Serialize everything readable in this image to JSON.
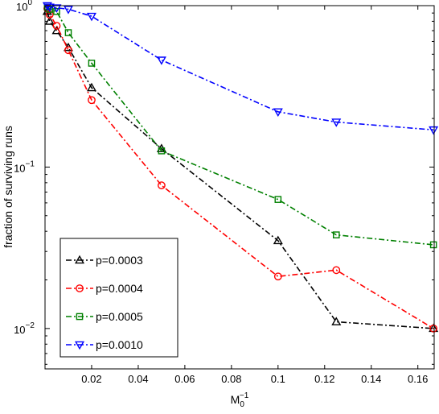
{
  "chart_data": {
    "type": "line",
    "title": "",
    "xlabel": {
      "base": "M",
      "sub": "0",
      "sup": "−1"
    },
    "ylabel": "fraction of surviving runs",
    "x": [
      0.001,
      0.002,
      0.005,
      0.01,
      0.02,
      0.05,
      0.1,
      0.125,
      0.1667
    ],
    "xlim": [
      0,
      0.167
    ],
    "ylim": [
      0.00562,
      1
    ],
    "yscale": "log",
    "x_ticks": [
      0.02,
      0.04,
      0.06,
      0.08,
      0.1,
      0.12,
      0.14,
      0.16
    ],
    "x_tick_labels": [
      "0.02",
      "0.04",
      "0.06",
      "0.08",
      "0.1",
      "0.12",
      "0.14",
      "0.16"
    ],
    "y_ticks": [
      {
        "value": 1,
        "base": "10",
        "exp": "0"
      },
      {
        "value": 0.1,
        "base": "10",
        "exp": "−1"
      },
      {
        "value": 0.01,
        "base": "10",
        "exp": "−2"
      }
    ],
    "grid": false,
    "legend_position": "bottom-left",
    "series": [
      {
        "name": "p=0.0003",
        "color": "#000000",
        "marker": "triangle-up",
        "values": [
          0.92,
          0.8,
          0.7,
          0.55,
          0.31,
          0.13,
          0.035,
          0.011,
          0.01
        ]
      },
      {
        "name": "p=0.0004",
        "color": "#ff0000",
        "marker": "circle",
        "values": [
          0.96,
          0.88,
          0.75,
          0.53,
          0.26,
          0.077,
          0.021,
          0.023,
          0.01
        ]
      },
      {
        "name": "p=0.0005",
        "color": "#008000",
        "marker": "square",
        "values": [
          0.98,
          0.95,
          0.92,
          0.68,
          0.44,
          0.126,
          0.063,
          0.038,
          0.033
        ]
      },
      {
        "name": "p=0.0010",
        "color": "#0000ff",
        "marker": "triangle-down",
        "values": [
          1.0,
          0.98,
          0.97,
          0.95,
          0.86,
          0.46,
          0.22,
          0.19,
          0.17
        ]
      }
    ]
  }
}
